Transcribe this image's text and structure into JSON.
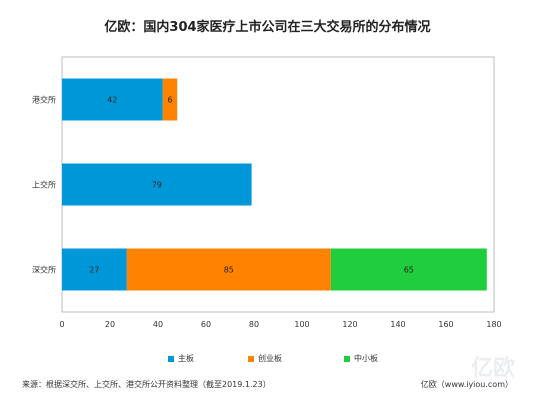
{
  "chart_data": {
    "type": "bar",
    "orientation": "horizontal",
    "stacked": true,
    "title": "亿欧：国内304家医疗上市公司在三大交易所的分布情况",
    "categories": [
      "港交所",
      "上交所",
      "深交所"
    ],
    "series": [
      {
        "name": "主板",
        "color": "#0097d9",
        "values": [
          42,
          79,
          27
        ]
      },
      {
        "name": "创业板",
        "color": "#ff8200",
        "values": [
          6,
          0,
          85
        ]
      },
      {
        "name": "中小板",
        "color": "#1fcd3d",
        "values": [
          0,
          0,
          65
        ]
      }
    ],
    "xlim": [
      0,
      180
    ],
    "xticks": [
      0,
      20,
      40,
      60,
      80,
      100,
      120,
      140,
      160,
      180
    ],
    "grid": false,
    "legend_position": "bottom"
  },
  "footer": {
    "source": "来源：根据深交所、上交所、港交所公开资料整理（截至2019.1.23）",
    "brand": "亿欧（www.iyiou.com）"
  },
  "watermark": {
    "text": "亿欧"
  }
}
